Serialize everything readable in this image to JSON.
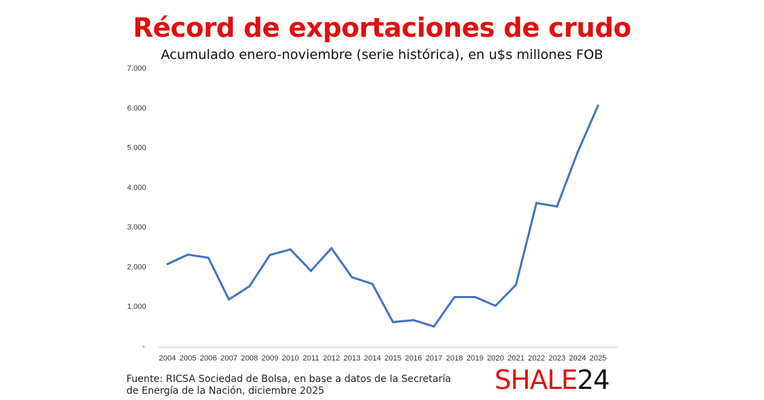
{
  "chart_data": {
    "type": "line",
    "title": "Récord de exportaciones de crudo",
    "subtitle": "Acumulado enero-noviembre (serie histórica), en u$s millones FOB",
    "xlabel": "",
    "ylabel": "",
    "ylim": [
      0,
      7000
    ],
    "yticks": [
      "-",
      "1.000",
      "2.000",
      "3.000",
      "4.000",
      "5.000",
      "6.000",
      "7.000"
    ],
    "grid": false,
    "categories": [
      "2004",
      "2005",
      "2006",
      "2007",
      "2008",
      "2009",
      "2010",
      "2011",
      "2012",
      "2013",
      "2014",
      "2015",
      "2016",
      "2017",
      "2018",
      "2019",
      "2020",
      "2021",
      "2022",
      "2023",
      "2024",
      "2025"
    ],
    "series": [
      {
        "name": "Exportaciones de crudo",
        "color": "#4472c4",
        "values": [
          2060,
          2300,
          2220,
          1170,
          1500,
          2290,
          2430,
          1890,
          2460,
          1730,
          1560,
          600,
          650,
          490,
          1230,
          1230,
          1010,
          1540,
          3600,
          3510,
          4870,
          6050
        ]
      }
    ]
  },
  "footer": {
    "source": "Fuente: RICSA Sociedad de Bolsa, en base a datos de la Secretaría de Energía de la Nación, diciembre 2025",
    "logo_part1": "SHALE",
    "logo_part2": "24"
  }
}
